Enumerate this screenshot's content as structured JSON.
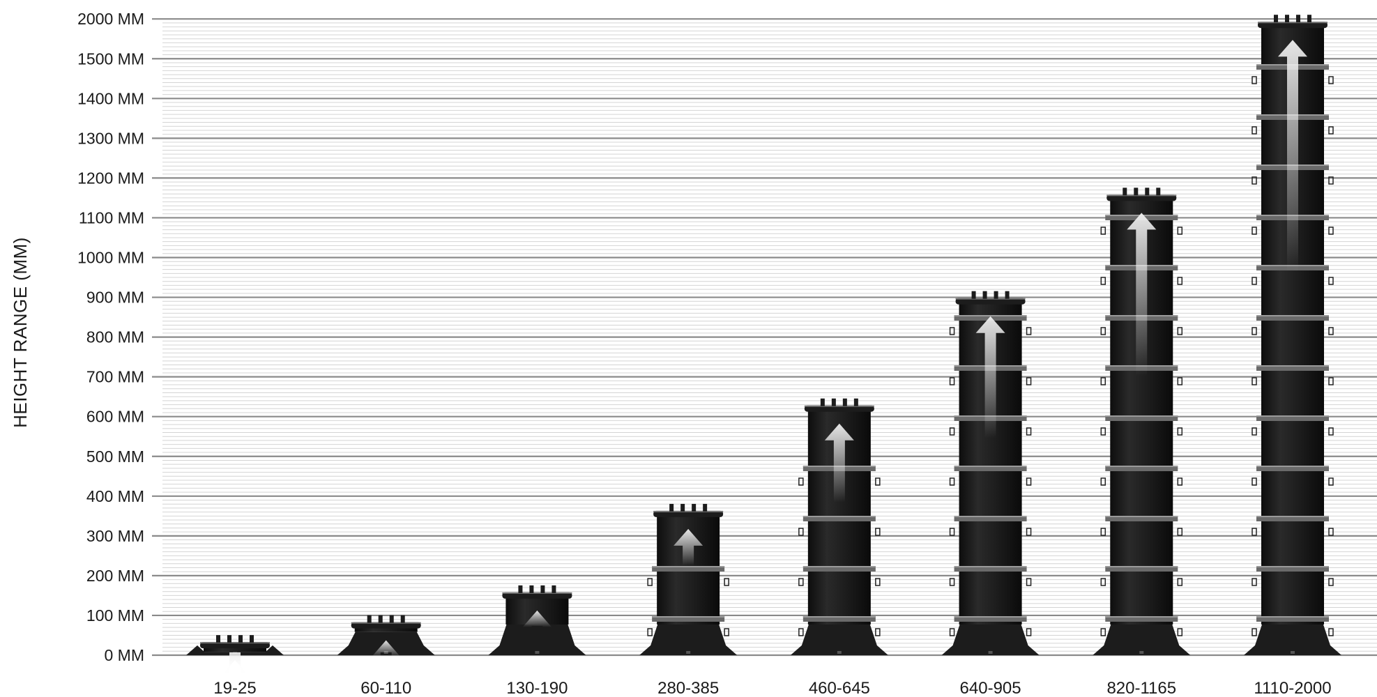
{
  "chart_data": {
    "type": "bar",
    "title": "",
    "xlabel": "",
    "ylabel": "HEIGHT RANGE (MM)",
    "y_ticks": [
      "0 MM",
      "100 MM",
      "200 MM",
      "300 MM",
      "400 MM",
      "500 MM",
      "600 MM",
      "700 MM",
      "800 MM",
      "900 MM",
      "1000 MM",
      "1100 MM",
      "1200 MM",
      "1300 MM",
      "1400 MM",
      "1500 MM",
      "2000 MM"
    ],
    "categories": [
      "19-25",
      "60-110",
      "130-190",
      "280-385",
      "460-645",
      "640-905",
      "820-1165",
      "1110-2000"
    ],
    "values": [
      40,
      90,
      165,
      370,
      635,
      905,
      1165,
      2000
    ],
    "grid": true,
    "legend": "none",
    "colors": {
      "pedestal": "#1c1c1c",
      "pedestal_ring": "#6a6a6a",
      "grid_major": "#8a8a8a",
      "grid_minor": "#d4d4d4",
      "arrow": "#e6e6e6"
    }
  }
}
